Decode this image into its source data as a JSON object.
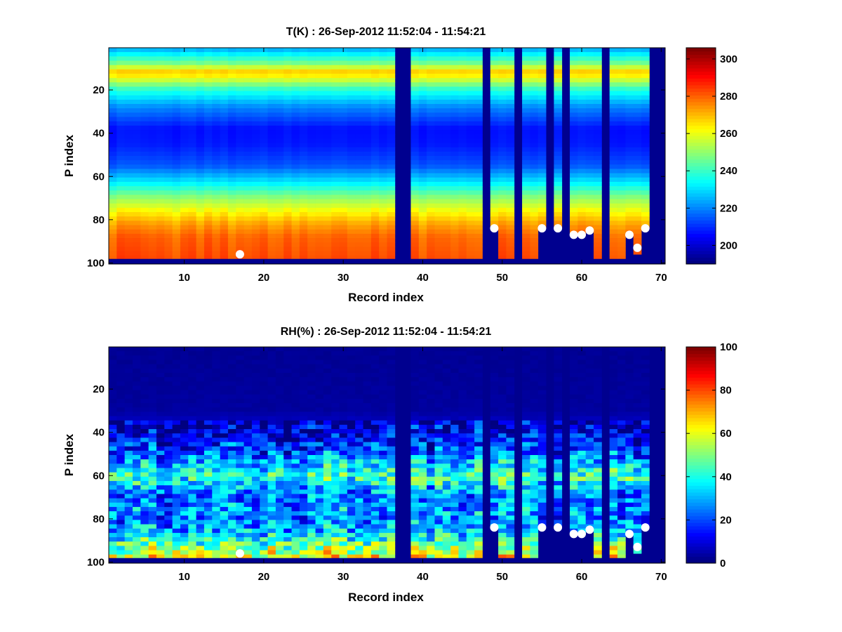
{
  "figure_background": "#ffffff",
  "missing_color": "#00008f",
  "marker_color": "#ffffff",
  "chart_data": [
    {
      "type": "heatmap",
      "name": "temperature",
      "title": "T(K) : 26-Sep-2012 11:52:04 - 11:54:21",
      "xlabel": "Record index",
      "ylabel": "P index",
      "xlim": [
        0.5,
        70.5
      ],
      "ylim": [
        0.5,
        100.5
      ],
      "y_reversed": true,
      "x_ticks": [
        10,
        20,
        30,
        40,
        50,
        60,
        70
      ],
      "y_ticks": [
        20,
        40,
        60,
        80,
        100
      ],
      "colormap": "jet",
      "clim": [
        190,
        306
      ],
      "colorbar_ticks": [
        200,
        220,
        240,
        260,
        280,
        300
      ],
      "profile": {
        "p": [
          1,
          8,
          12,
          20,
          28,
          38,
          45,
          55,
          63,
          70,
          76,
          82,
          88,
          98
        ],
        "value": [
          224,
          248,
          270,
          238,
          220,
          206,
          207,
          214,
          232,
          250,
          262,
          273,
          280,
          283
        ]
      },
      "missing_records": [
        37,
        38,
        48,
        52,
        56,
        58,
        63,
        69,
        70
      ],
      "profile_bottom": [
        98,
        98,
        98,
        98,
        98,
        98,
        98,
        98,
        98,
        98,
        98,
        98,
        98,
        98,
        98,
        98,
        98,
        98,
        98,
        98,
        98,
        98,
        98,
        98,
        98,
        98,
        98,
        98,
        98,
        98,
        98,
        98,
        98,
        98,
        98,
        98,
        0,
        0,
        98,
        98,
        98,
        98,
        98,
        98,
        98,
        98,
        98,
        0,
        84,
        98,
        98,
        0,
        98,
        98,
        84,
        0,
        84,
        0,
        87,
        87,
        85,
        98,
        0,
        98,
        98,
        87,
        96,
        84,
        0,
        0
      ],
      "markers": [
        {
          "record": 17,
          "p": 96
        },
        {
          "record": 49,
          "p": 84
        },
        {
          "record": 55,
          "p": 84
        },
        {
          "record": 57,
          "p": 84
        },
        {
          "record": 59,
          "p": 87
        },
        {
          "record": 60,
          "p": 87
        },
        {
          "record": 61,
          "p": 85
        },
        {
          "record": 66,
          "p": 87
        },
        {
          "record": 67,
          "p": 93
        },
        {
          "record": 68,
          "p": 84
        }
      ]
    },
    {
      "type": "heatmap",
      "name": "relative-humidity",
      "title": "RH(%) : 26-Sep-2012 11:52:04 - 11:54:21",
      "xlabel": "Record index",
      "ylabel": "P index",
      "xlim": [
        0.5,
        70.5
      ],
      "ylim": [
        0.5,
        100.5
      ],
      "y_reversed": true,
      "x_ticks": [
        10,
        20,
        30,
        40,
        50,
        60,
        70
      ],
      "y_ticks": [
        20,
        40,
        60,
        80,
        100
      ],
      "colormap": "jet",
      "clim": [
        0,
        100
      ],
      "colorbar_ticks": [
        0,
        20,
        40,
        60,
        80,
        100
      ],
      "profile": {
        "p": [
          1,
          30,
          40,
          48,
          55,
          60,
          63,
          68,
          72,
          76,
          80,
          86,
          92,
          98
        ],
        "value": [
          2,
          3,
          10,
          18,
          33,
          42,
          38,
          26,
          22,
          28,
          24,
          32,
          48,
          62
        ]
      },
      "missing_records": [
        37,
        38,
        48,
        52,
        56,
        58,
        63,
        69,
        70
      ],
      "profile_bottom": [
        98,
        98,
        98,
        98,
        98,
        98,
        98,
        98,
        98,
        98,
        98,
        98,
        98,
        98,
        98,
        98,
        98,
        98,
        98,
        98,
        98,
        98,
        98,
        98,
        98,
        98,
        98,
        98,
        98,
        98,
        98,
        98,
        98,
        98,
        98,
        98,
        0,
        0,
        98,
        98,
        98,
        98,
        98,
        98,
        98,
        98,
        98,
        0,
        84,
        98,
        98,
        0,
        98,
        98,
        84,
        0,
        84,
        0,
        87,
        87,
        85,
        98,
        0,
        98,
        98,
        87,
        96,
        84,
        0,
        0
      ],
      "markers": [
        {
          "record": 17,
          "p": 96
        },
        {
          "record": 49,
          "p": 84
        },
        {
          "record": 55,
          "p": 84
        },
        {
          "record": 57,
          "p": 84
        },
        {
          "record": 59,
          "p": 87
        },
        {
          "record": 60,
          "p": 87
        },
        {
          "record": 61,
          "p": 85
        },
        {
          "record": 66,
          "p": 87
        },
        {
          "record": 67,
          "p": 93
        },
        {
          "record": 68,
          "p": 84
        }
      ]
    }
  ]
}
